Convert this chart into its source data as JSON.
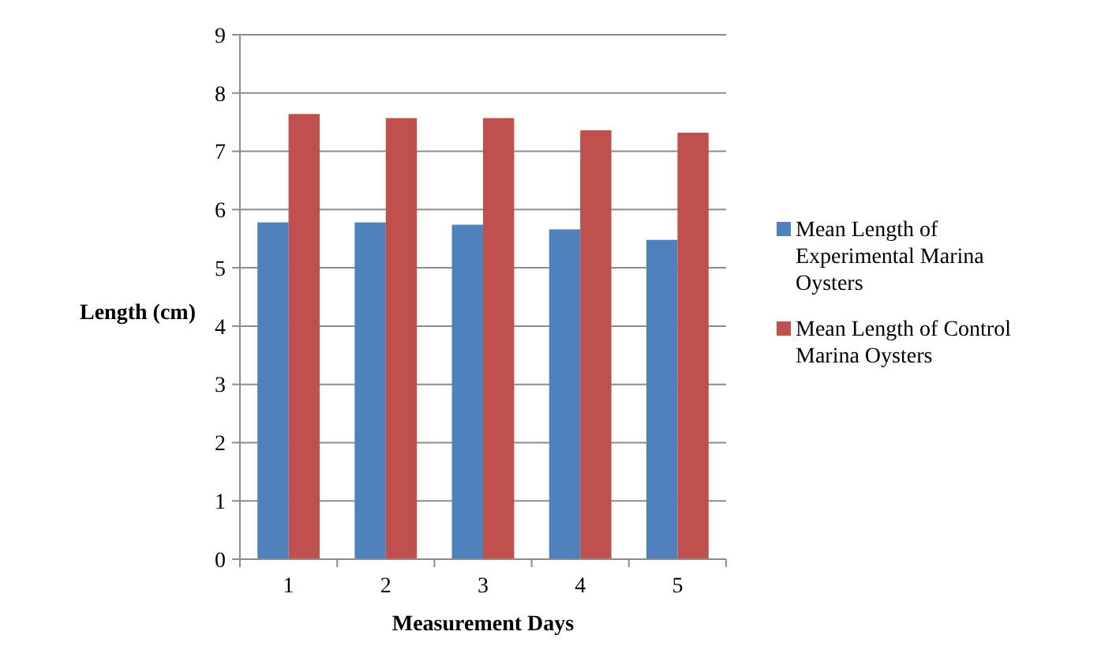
{
  "chart_data": {
    "type": "bar",
    "xlabel": "Measurement Days",
    "ylabel": "Length (cm)",
    "categories": [
      "1",
      "2",
      "3",
      "4",
      "5"
    ],
    "series": [
      {
        "name": "Mean Length of Experimental Marina Oysters",
        "color": "#4f81bd",
        "values": [
          5.78,
          5.78,
          5.74,
          5.66,
          5.48
        ]
      },
      {
        "name": "Mean Length of Control Marina Oysters",
        "color": "#c0504d",
        "values": [
          7.64,
          7.57,
          7.57,
          7.36,
          7.32
        ]
      }
    ],
    "ylim": [
      0,
      9
    ],
    "yticks": [
      0,
      1,
      2,
      3,
      4,
      5,
      6,
      7,
      8,
      9
    ],
    "grid": "y",
    "legend": "right"
  }
}
